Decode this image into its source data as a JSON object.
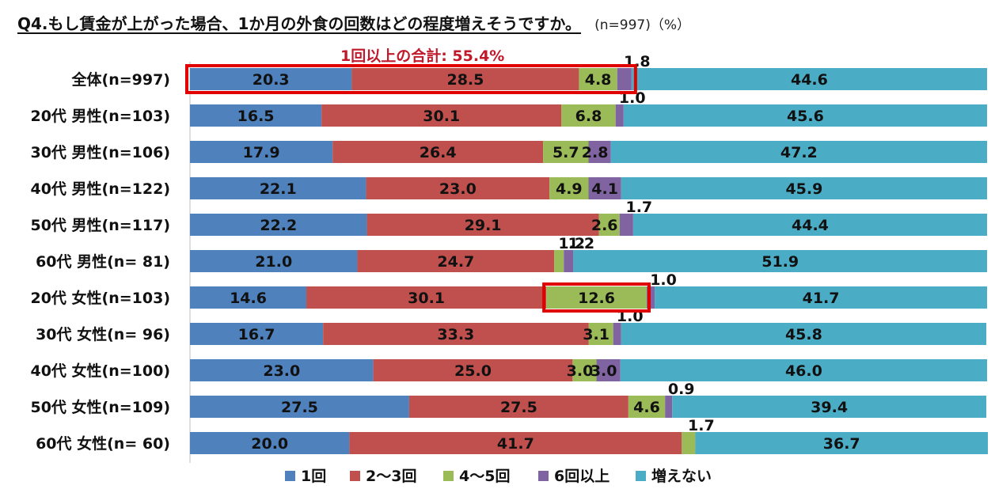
{
  "title": "Q4.もし賃金が上がった場合、1か月の外食の回数はどの程度増えそうですか。",
  "note": "(n=997)（%）",
  "callout": "1回以上の合計: 55.4%",
  "chart_data": {
    "type": "bar",
    "orientation": "horizontal",
    "stacked": true,
    "title": "Q4.もし賃金が上がった場合、1か月の外食の回数はどの程度増えそうですか。",
    "unit": "%",
    "xlim": [
      0,
      100
    ],
    "legend_position": "bottom",
    "categories": [
      "全体(n=997)",
      "20代 男性(n=103)",
      "30代 男性(n=106)",
      "40代 男性(n=122)",
      "50代 男性(n=117)",
      "60代 男性(n=  81)",
      "20代 女性(n=103)",
      "30代 女性(n=  96)",
      "40代 女性(n=100)",
      "50代 女性(n=109)",
      "60代 女性(n=  60)"
    ],
    "series": [
      {
        "name": "1回",
        "color": "#4f81bd",
        "values": [
          20.3,
          16.5,
          17.9,
          22.1,
          22.2,
          21.0,
          14.6,
          16.7,
          23.0,
          27.5,
          20.0
        ]
      },
      {
        "name": "2～3回",
        "color": "#c0504d",
        "values": [
          28.5,
          30.1,
          26.4,
          23.0,
          29.1,
          24.7,
          30.1,
          33.3,
          25.0,
          27.5,
          41.7
        ]
      },
      {
        "name": "4～5回",
        "color": "#9bbb59",
        "values": [
          4.8,
          6.8,
          5.7,
          4.9,
          2.6,
          1.2,
          12.6,
          3.1,
          3.0,
          4.6,
          1.7
        ]
      },
      {
        "name": "6回以上",
        "color": "#8064a2",
        "values": [
          1.8,
          1.0,
          2.8,
          4.1,
          1.7,
          1.2,
          1.0,
          1.0,
          3.0,
          0.9,
          0.0
        ]
      },
      {
        "name": "増えない",
        "color": "#4bacc6",
        "values": [
          44.6,
          45.6,
          47.2,
          45.9,
          44.4,
          51.9,
          41.7,
          45.8,
          46.0,
          39.4,
          36.7
        ]
      }
    ],
    "highlights": [
      {
        "category_index": 0,
        "series_from": 0,
        "series_to": 3
      },
      {
        "category_index": 6,
        "series_from": 2,
        "series_to": 2
      }
    ]
  }
}
